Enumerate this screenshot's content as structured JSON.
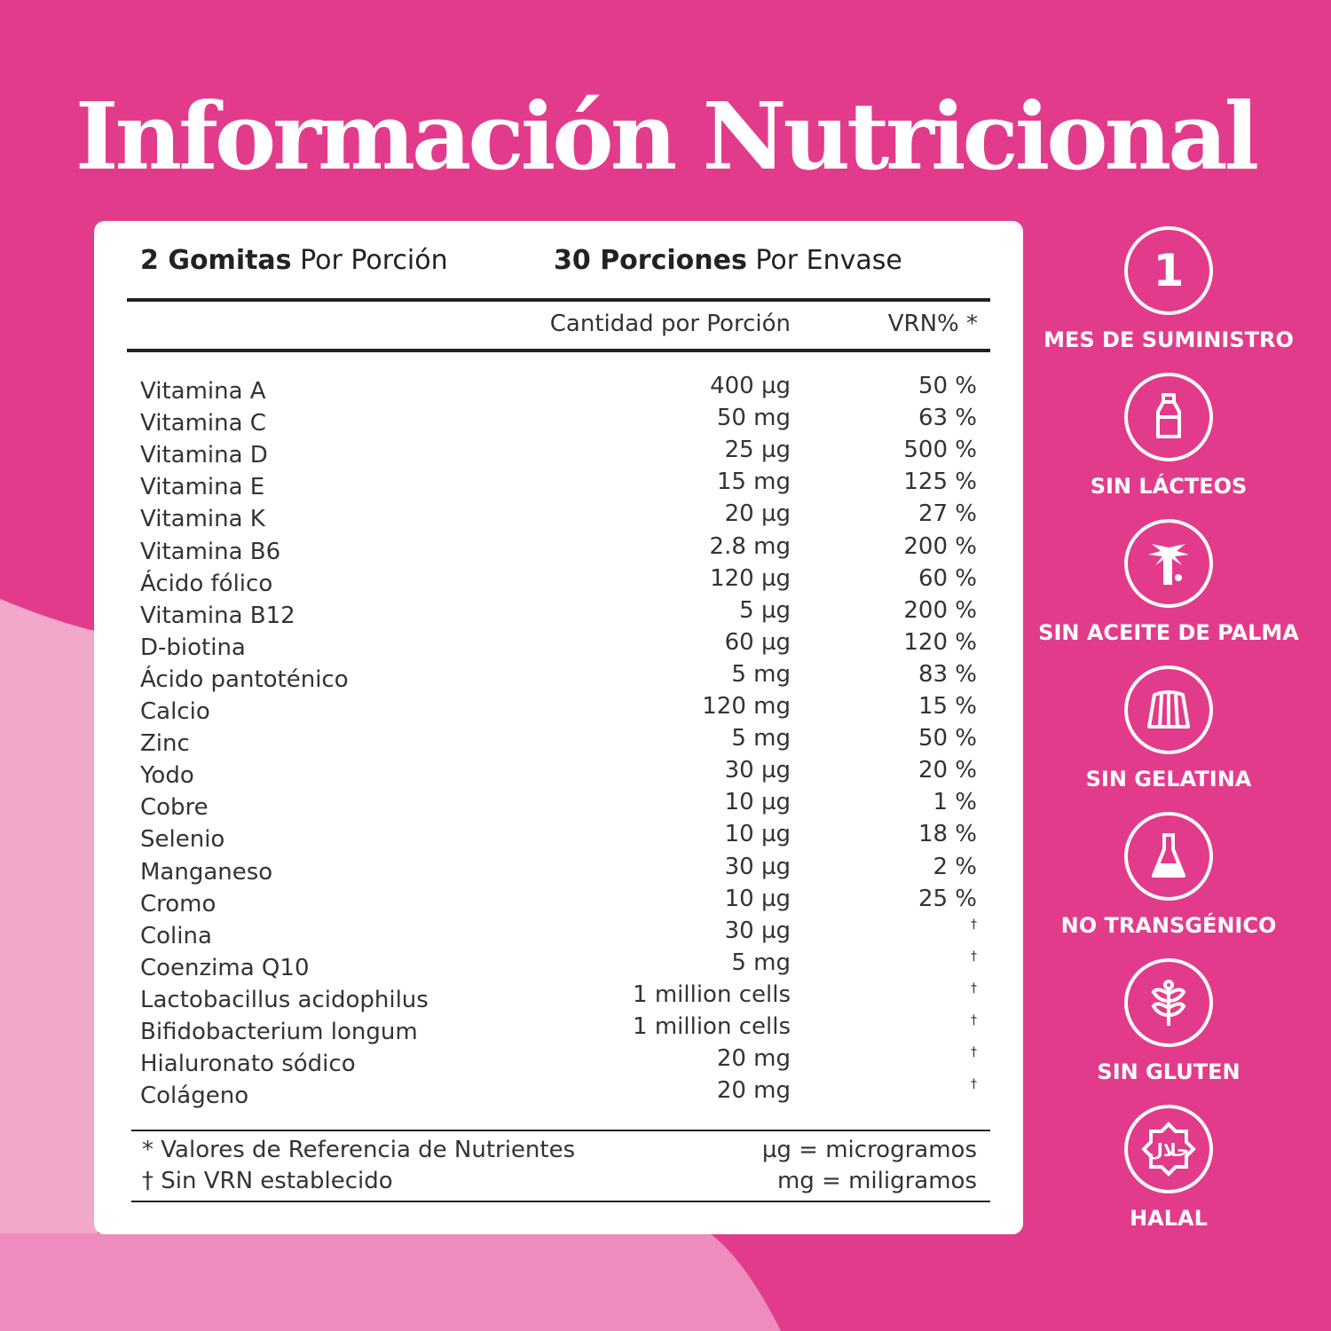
{
  "colors": {
    "background": "#e33b8b",
    "light_pink": "#f0a3c8",
    "mid_pink": "#ee8dbd",
    "card": "#ffffff"
  },
  "title": "Información Nutricional",
  "serving": {
    "bold": "2 Gomitas",
    "rest": " Por Porción"
  },
  "servings_per": {
    "bold": "30 Porciones",
    "rest": " Por Envase"
  },
  "columns": {
    "amount": "Cantidad por Porción",
    "vrn": "VRN% *"
  },
  "nutrients": [
    {
      "name": "Vitamina A",
      "amount": "400 µg",
      "vrn": "50 %"
    },
    {
      "name": "Vitamina C",
      "amount": "50 mg",
      "vrn": "63 %"
    },
    {
      "name": "Vitamina D",
      "amount": "25 µg",
      "vrn": "500 %"
    },
    {
      "name": "Vitamina E",
      "amount": "15 mg",
      "vrn": "125 %"
    },
    {
      "name": "Vitamina K",
      "amount": "20 µg",
      "vrn": "27 %"
    },
    {
      "name": "Vitamina B6",
      "amount": "2.8 mg",
      "vrn": "200 %"
    },
    {
      "name": "Ácido fólico",
      "amount": "120 µg",
      "vrn": "60 %"
    },
    {
      "name": "Vitamina B12",
      "amount": "5 µg",
      "vrn": "200 %"
    },
    {
      "name": "D-biotina",
      "amount": "60 µg",
      "vrn": "120 %"
    },
    {
      "name": "Ácido pantoténico",
      "amount": "5 mg",
      "vrn": "83 %"
    },
    {
      "name": "Calcio",
      "amount": "120 mg",
      "vrn": "15 %"
    },
    {
      "name": "Zinc",
      "amount": "5 mg",
      "vrn": "50 %"
    },
    {
      "name": "Yodo",
      "amount": "30 µg",
      "vrn": "20 %"
    },
    {
      "name": "Cobre",
      "amount": "10 µg",
      "vrn": "1 %"
    },
    {
      "name": "Selenio",
      "amount": "10 µg",
      "vrn": "18 %"
    },
    {
      "name": "Manganeso",
      "amount": "30 µg",
      "vrn": "2 %"
    },
    {
      "name": "Cromo",
      "amount": "10 µg",
      "vrn": "25 %"
    },
    {
      "name": "Colina",
      "amount": "30 µg",
      "vrn": "†"
    },
    {
      "name": "Coenzima Q10",
      "amount": "5 mg",
      "vrn": "†"
    },
    {
      "name": "Lactobacillus acidophilus",
      "amount": "1 million cells",
      "vrn": "†"
    },
    {
      "name": "Bifidobacterium longum",
      "amount": "1 million cells",
      "vrn": "†"
    },
    {
      "name": "Hialuronato sódico",
      "amount": "20 mg",
      "vrn": "†"
    },
    {
      "name": "Colágeno",
      "amount": "20 mg",
      "vrn": "†"
    }
  ],
  "footnotes": {
    "vrn": "* Valores de Referencia de Nutrientes",
    "no_vrn": "† Sin VRN establecido",
    "ug": "µg = microgramos",
    "mg": "mg = miligramos"
  },
  "badges": [
    {
      "icon": "number-one-icon",
      "glyph": "1",
      "label": "MES DE SUMINISTRO"
    },
    {
      "icon": "milk-bottle-icon",
      "label": "SIN LÁCTEOS"
    },
    {
      "icon": "palm-tree-icon",
      "label": "SIN ACEITE DE PALMA"
    },
    {
      "icon": "gelatin-icon",
      "label": "SIN GELATINA"
    },
    {
      "icon": "flask-icon",
      "label": "NO TRANSGÉNICO"
    },
    {
      "icon": "wheat-icon",
      "label": "SIN GLUTEN"
    },
    {
      "icon": "halal-icon",
      "label": "HALAL"
    }
  ]
}
